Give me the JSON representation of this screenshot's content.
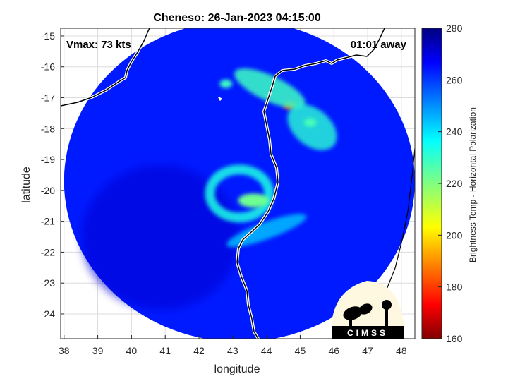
{
  "chart_data": {
    "type": "heatmap",
    "title": "Cheneso: 26-Jan-2023 04:15:00",
    "xlabel": "longitude",
    "ylabel": "latitude",
    "xlim": [
      37.9,
      48.4
    ],
    "ylim": [
      -24.8,
      -14.75
    ],
    "xticks": [
      38,
      39,
      40,
      41,
      42,
      43,
      44,
      45,
      46,
      47,
      48
    ],
    "yticks": [
      -15,
      -16,
      -17,
      -18,
      -19,
      -20,
      -21,
      -22,
      -23,
      -24
    ],
    "grid": true,
    "annotations": {
      "vmax": "Vmax: 73 kts",
      "offset": "01:01 away"
    },
    "colorbar": {
      "label": "Brightness Temp - Horizontal Polarization",
      "ticks": [
        280,
        260,
        240,
        220,
        200,
        180,
        160
      ],
      "range": [
        160,
        280
      ],
      "colormap": "jet"
    },
    "logo_text": "CIMSS",
    "swath_center": [
      43.2,
      -19.7
    ],
    "swath_radius_deg": 5.2,
    "background_tb": 262,
    "features": [
      {
        "name": "eyewall",
        "lon": 43.2,
        "lat": -20.1,
        "tb": 232
      },
      {
        "name": "northern-band-core-1",
        "lon": 44.7,
        "lat": -17.25,
        "tb": 182
      },
      {
        "name": "northern-band-core-2",
        "lon": 45.3,
        "lat": -17.8,
        "tb": 212
      },
      {
        "name": "northern-band",
        "lon": 44.1,
        "lat": -16.7,
        "tb": 228
      },
      {
        "name": "isolated-cell",
        "lon": 42.8,
        "lat": -16.55,
        "tb": 228
      },
      {
        "name": "southern-band",
        "lon": 44.0,
        "lat": -21.3,
        "tb": 240
      }
    ]
  }
}
